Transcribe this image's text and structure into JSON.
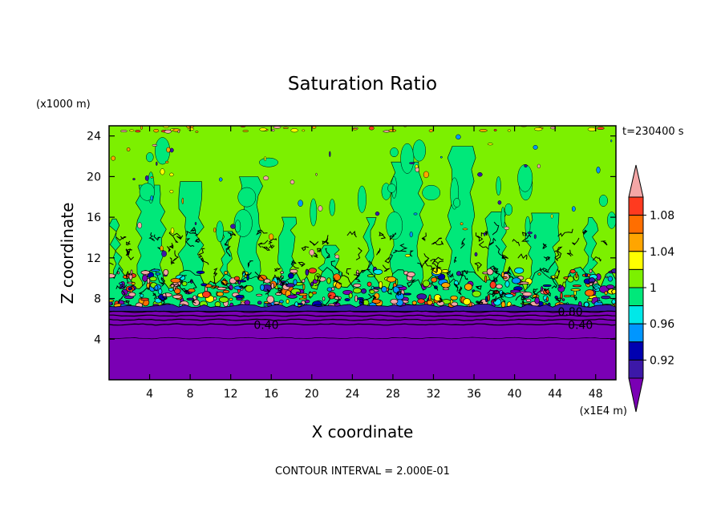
{
  "chart_data": {
    "type": "heatmap",
    "title": "Saturation Ratio",
    "xlabel": "X coordinate",
    "ylabel": "Z coordinate",
    "x_unit": "(x1E4 m)",
    "y_unit": "(x1000 m)",
    "time_label": "t=230400 s",
    "footer": "CONTOUR INTERVAL = 2.000E-01",
    "x_ticks": [
      "4",
      "8",
      "12",
      "16",
      "20",
      "24",
      "28",
      "32",
      "36",
      "40",
      "44",
      "48"
    ],
    "y_ticks": [
      "4",
      "8",
      "12",
      "16",
      "20",
      "24"
    ],
    "xlim": [
      0,
      50
    ],
    "ylim": [
      0,
      25
    ],
    "contour_labels": [
      {
        "text": "0.40",
        "x": 15.5,
        "z": 5.4
      },
      {
        "text": "0.40",
        "x": 46.5,
        "z": 5.4
      },
      {
        "text": "0.80",
        "x": 45.5,
        "z": 6.7
      }
    ],
    "colorbar": {
      "labels": [
        "1.08",
        "1.04",
        "1",
        "0.96",
        "0.92"
      ],
      "levels": [
        {
          "color": "#f4a6a6"
        },
        {
          "color": "#ff3a1f"
        },
        {
          "color": "#ff6e00"
        },
        {
          "color": "#ffa500"
        },
        {
          "color": "#ffff00"
        },
        {
          "color": "#7cf000"
        },
        {
          "color": "#00e87a"
        },
        {
          "color": "#00e8e8"
        },
        {
          "color": "#0096ff"
        },
        {
          "color": "#0000b0"
        },
        {
          "color": "#3c18a8"
        },
        {
          "color": "#7a00b4"
        }
      ]
    },
    "field_structure": {
      "low_value_layer_top_z": 7.0,
      "turbulent_band_z": [
        7.0,
        12.0
      ],
      "upper_region_levels": [
        "1",
        "0.96-1"
      ]
    }
  }
}
